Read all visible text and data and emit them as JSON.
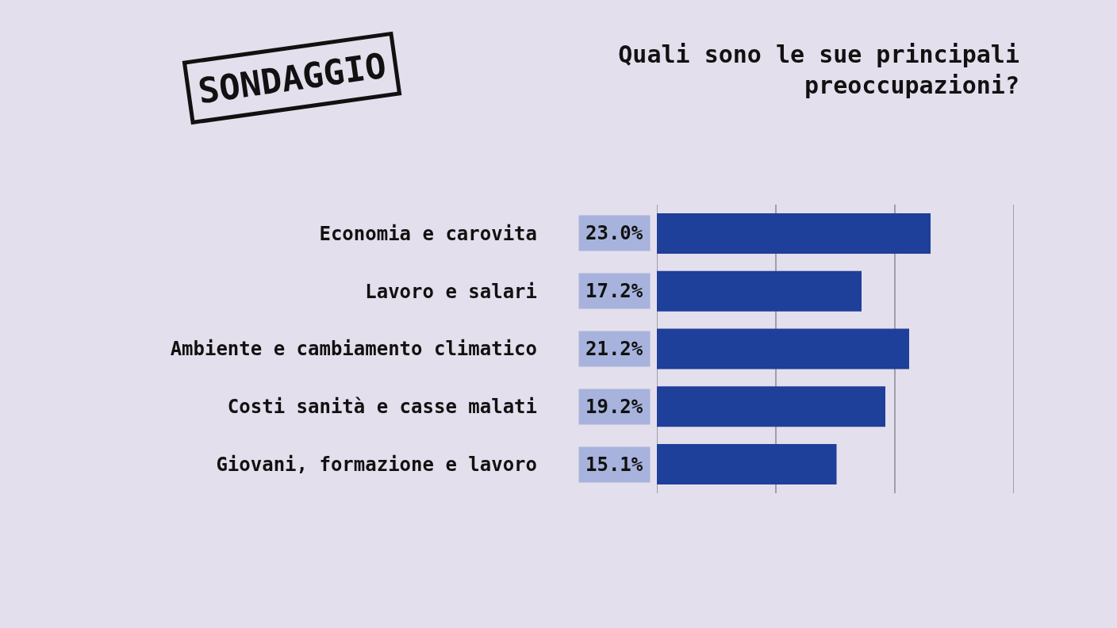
{
  "chart_data": {
    "type": "bar",
    "orientation": "horizontal",
    "title": "Quali sono le sue principali preoccupazioni?",
    "annotations": [
      "SONDAGGIO"
    ],
    "categories": [
      "Economia e carovita",
      "Lavoro e salari",
      "Ambiente e cambiamento climatico",
      "Costi sanità e casse malati",
      "Giovani, formazione e lavoro"
    ],
    "values": [
      23.0,
      17.2,
      21.2,
      19.2,
      15.1
    ],
    "value_labels": [
      "23.0%",
      "17.2%",
      "21.2%",
      "19.2%",
      "15.1%"
    ],
    "color": "#1e3f9a",
    "xlim": [
      0,
      30
    ],
    "xticks": [
      {
        "value": 0,
        "label": null
      },
      {
        "value": 10,
        "label": null
      },
      {
        "value": 20,
        "label": null
      },
      {
        "value": 30,
        "label": null
      }
    ],
    "grid": "x",
    "tick_labels": "y"
  }
}
